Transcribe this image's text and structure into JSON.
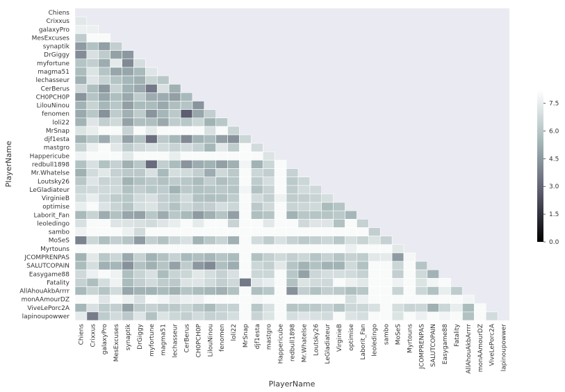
{
  "chart_data": {
    "type": "heatmap",
    "title": "",
    "xlabel": "PlayerName",
    "ylabel": "PlayerName",
    "mask": "upper-triangle-and-diagonal",
    "colormap": [
      "#000000",
      "#5b5b6e",
      "#a7b9ba",
      "#ffffff"
    ],
    "colorbar_ticks": [
      0.0,
      1.5,
      3.0,
      4.5,
      6.0,
      7.5
    ],
    "colorbar_tick_labels": [
      "0.0",
      "1.5",
      "3.0",
      "4.5",
      "6.0",
      "7.5"
    ],
    "vmin": 0,
    "vmax": 8.2,
    "labels": [
      "Chiens",
      "Crixxus",
      "galaxyPro",
      "MesExcuses",
      "synaptik",
      "DrGiggy",
      "myfortune",
      "magma51",
      "lechasseur",
      "CerBerus",
      "CH0PCH0P",
      "LilouNinou",
      "fenomen",
      "loli22",
      "MrSnap",
      "djf1esta",
      "mastgro",
      "Happericube",
      "redbull1898",
      "Mr.Whatelse",
      "Loutsky26",
      "LeGladiateur",
      "VirginieB",
      "optimise",
      "Laborit_Fan",
      "leoledingo",
      "sambo",
      "MoSeS",
      "Myrtouns",
      "JCOMPRENPAS",
      "SALUTCOPAIN",
      "Easygame88",
      "Fatality",
      "AllAhouAkbArrrr",
      "monAAmourDZ",
      "ViveLePorc2A",
      "lapinoupowwer"
    ],
    "matrix": [
      [],
      [
        7.3
      ],
      [
        7.6,
        7.6
      ],
      [
        6.2,
        8.0,
        8.0
      ],
      [
        4.6,
        5.8,
        4.7,
        6.3
      ],
      [
        4.2,
        7.0,
        6.2,
        4.8,
        4.5
      ],
      [
        5.9,
        6.3,
        5.1,
        7.4,
        4.1,
        6.9
      ],
      [
        5.6,
        7.1,
        5.9,
        4.9,
        4.9,
        5.5,
        7.2
      ],
      [
        5.2,
        7.2,
        6.5,
        5.9,
        5.4,
        5.2,
        6.5,
        6.0
      ],
      [
        6.7,
        5.7,
        4.5,
        6.5,
        5.3,
        5.0,
        3.6,
        7.0,
        5.2
      ],
      [
        4.4,
        5.9,
        4.9,
        5.7,
        5.0,
        6.2,
        5.1,
        5.1,
        4.7,
        5.5
      ],
      [
        5.3,
        6.5,
        5.4,
        6.0,
        4.7,
        5.6,
        5.6,
        5.0,
        5.7,
        5.9,
        4.4
      ],
      [
        5.0,
        6.0,
        4.3,
        6.2,
        5.2,
        6.2,
        4.4,
        5.4,
        6.1,
        2.8,
        4.9,
        6.3
      ],
      [
        5.3,
        7.2,
        6.3,
        6.7,
        4.8,
        5.7,
        5.7,
        5.0,
        6.2,
        6.0,
        6.6,
        5.3,
        6.0
      ],
      [
        7.1,
        7.5,
        8.0,
        8.0,
        6.5,
        8.0,
        7.4,
        8.0,
        8.0,
        8.0,
        8.0,
        7.0,
        8.0,
        6.5
      ],
      [
        5.3,
        6.0,
        5.1,
        6.7,
        4.8,
        5.8,
        3.3,
        6.1,
        5.4,
        4.1,
        5.3,
        5.6,
        4.7,
        4.3,
        6.6
      ],
      [
        6.5,
        7.6,
        8.0,
        7.3,
        6.2,
        6.7,
        7.0,
        6.8,
        6.5,
        6.8,
        6.4,
        5.4,
        7.3,
        6.2,
        8.0,
        6.8
      ],
      [
        7.7,
        8.0,
        8.0,
        8.0,
        7.3,
        8.0,
        8.0,
        8.0,
        7.5,
        8.0,
        8.0,
        8.0,
        8.0,
        8.0,
        8.0,
        8.0,
        7.1
      ],
      [
        5.8,
        7.0,
        5.8,
        6.4,
        5.2,
        6.0,
        3.2,
        6.3,
        5.6,
        4.4,
        5.1,
        5.3,
        4.7,
        5.2,
        7.8,
        5.3,
        6.6,
        8.0
      ],
      [
        5.2,
        6.8,
        7.3,
        6.4,
        6.1,
        6.1,
        7.0,
        5.5,
        6.9,
        6.8,
        6.3,
        5.1,
        6.7,
        6.1,
        8.0,
        6.6,
        6.3,
        8.0,
        6.4
      ],
      [
        6.0,
        7.2,
        6.5,
        6.6,
        5.3,
        5.8,
        6.1,
        5.8,
        6.2,
        6.0,
        5.6,
        6.3,
        5.7,
        6.0,
        8.0,
        6.2,
        6.9,
        8.0,
        6.1,
        6.6
      ],
      [
        6.6,
        6.8,
        6.7,
        6.7,
        5.8,
        6.3,
        6.0,
        6.2,
        5.3,
        6.1,
        5.8,
        5.9,
        6.1,
        5.9,
        7.8,
        5.8,
        6.5,
        8.0,
        6.2,
        6.8,
        6.7
      ],
      [
        6.9,
        7.5,
        6.7,
        6.2,
        6.0,
        6.8,
        7.0,
        6.3,
        6.1,
        6.8,
        5.8,
        5.7,
        5.8,
        6.2,
        8.0,
        6.8,
        6.3,
        7.7,
        6.2,
        6.3,
        6.5,
        6.9
      ],
      [
        7.5,
        8.0,
        7.1,
        6.5,
        5.9,
        6.9,
        7.1,
        6.4,
        5.8,
        6.6,
        6.2,
        6.3,
        6.9,
        6.6,
        8.0,
        6.1,
        6.7,
        8.0,
        6.5,
        6.6,
        6.7,
        5.6,
        5.9
      ],
      [
        5.5,
        6.5,
        5.1,
        5.8,
        4.9,
        4.8,
        6.0,
        5.1,
        6.0,
        5.5,
        4.6,
        5.2,
        5.9,
        4.7,
        8.0,
        5.7,
        5.9,
        8.0,
        5.3,
        6.0,
        5.9,
        5.9,
        6.1,
        5.4
      ],
      [
        7.0,
        8.0,
        8.0,
        7.2,
        7.1,
        7.0,
        6.8,
        7.2,
        7.5,
        8.0,
        7.4,
        8.0,
        8.0,
        6.5,
        8.0,
        8.0,
        7.3,
        8.0,
        8.0,
        6.7,
        7.2,
        7.2,
        5.8,
        8.0,
        6.4
      ],
      [
        7.7,
        8.0,
        8.0,
        8.0,
        7.6,
        6.8,
        8.0,
        8.0,
        8.0,
        8.0,
        8.0,
        8.0,
        8.0,
        8.0,
        8.0,
        8.0,
        8.0,
        8.0,
        8.0,
        8.0,
        8.0,
        8.0,
        8.0,
        8.0,
        8.0,
        6.3
      ],
      [
        3.9,
        6.6,
        5.7,
        6.3,
        5.9,
        4.6,
        6.3,
        5.8,
        6.6,
        7.0,
        5.3,
        6.0,
        6.5,
        5.2,
        8.0,
        6.8,
        6.2,
        7.0,
        6.4,
        6.1,
        6.3,
        6.6,
        6.0,
        6.9,
        6.5,
        7.1,
        6.4
      ],
      [
        8.0,
        8.0,
        8.0,
        8.0,
        8.0,
        8.0,
        8.0,
        8.0,
        8.0,
        8.0,
        8.0,
        8.0,
        8.0,
        8.0,
        8.0,
        8.0,
        8.0,
        8.0,
        8.0,
        8.0,
        8.0,
        8.0,
        8.0,
        7.6,
        8.0,
        8.0,
        8.0,
        7.3
      ],
      [
        5.3,
        7.3,
        6.0,
        6.6,
        5.0,
        6.4,
        5.3,
        5.8,
        6.4,
        5.5,
        5.7,
        5.4,
        5.9,
        5.6,
        8.0,
        5.8,
        6.3,
        6.7,
        6.3,
        6.6,
        5.9,
        6.4,
        5.9,
        6.4,
        6.2,
        7.3,
        7.4,
        4.6,
        7.9
      ],
      [
        5.6,
        6.9,
        5.2,
        5.4,
        4.3,
        5.8,
        5.2,
        5.9,
        4.8,
        6.2,
        4.5,
        4.1,
        5.7,
        5.1,
        8.0,
        6.6,
        6.3,
        7.3,
        5.9,
        5.3,
        5.8,
        5.3,
        5.3,
        6.7,
        5.8,
        8.0,
        8.0,
        6.6,
        8.0,
        5.9
      ],
      [
        6.7,
        7.6,
        8.0,
        7.7,
        5.7,
        6.5,
        7.0,
        5.6,
        6.5,
        6.6,
        7.3,
        6.9,
        6.4,
        7.0,
        8.0,
        6.6,
        6.6,
        8.0,
        6.0,
        4.8,
        6.6,
        6.9,
        6.9,
        6.8,
        6.4,
        8.0,
        8.0,
        6.3,
        8.0,
        6.7,
        5.3
      ],
      [
        6.4,
        5.7,
        6.9,
        7.7,
        5.6,
        6.3,
        6.8,
        6.2,
        6.1,
        7.1,
        7.2,
        6.8,
        6.3,
        6.7,
        3.6,
        7.2,
        7.5,
        8.0,
        5.8,
        7.1,
        6.8,
        6.7,
        8.0,
        7.6,
        7.3,
        8.0,
        8.0,
        7.7,
        8.0,
        7.1,
        7.8,
        8.0
      ],
      [
        5.5,
        6.5,
        5.9,
        6.8,
        4.9,
        5.3,
        5.3,
        5.6,
        5.2,
        5.9,
        5.6,
        5.4,
        5.2,
        5.8,
        8.0,
        5.7,
        6.0,
        8.0,
        4.3,
        6.3,
        5.8,
        6.3,
        6.1,
        5.7,
        6.0,
        8.0,
        8.0,
        6.5,
        8.0,
        6.6,
        5.8,
        7.5,
        6.2
      ],
      [
        8.0,
        8.0,
        7.2,
        8.0,
        7.6,
        7.0,
        8.0,
        7.8,
        7.3,
        7.6,
        7.6,
        8.0,
        8.0,
        8.0,
        8.0,
        7.9,
        8.0,
        8.0,
        8.0,
        8.0,
        8.0,
        8.0,
        8.0,
        6.9,
        7.6,
        8.0,
        8.0,
        8.0,
        8.0,
        8.0,
        8.0,
        8.0,
        8.0,
        7.8
      ],
      [
        5.4,
        7.0,
        6.2,
        6.3,
        4.8,
        6.2,
        6.4,
        6.1,
        6.1,
        6.5,
        6.0,
        5.6,
        6.4,
        6.4,
        8.0,
        6.0,
        7.0,
        8.0,
        5.9,
        6.0,
        6.1,
        6.4,
        5.9,
        6.6,
        6.6,
        7.0,
        8.0,
        6.9,
        6.5,
        6.6,
        5.2,
        6.6,
        7.5,
        5.6,
        8.0
      ],
      [
        7.4,
        3.7,
        6.2,
        6.8,
        6.1,
        7.2,
        5.8,
        7.1,
        6.6,
        6.3,
        6.8,
        6.4,
        6.5,
        6.9,
        8.0,
        6.5,
        7.1,
        8.0,
        6.9,
        7.2,
        7.0,
        6.8,
        8.0,
        7.1,
        6.9,
        8.0,
        8.0,
        7.1,
        8.0,
        7.6,
        8.0,
        7.8,
        8.0,
        5.8,
        8.0,
        6.8
      ]
    ]
  }
}
